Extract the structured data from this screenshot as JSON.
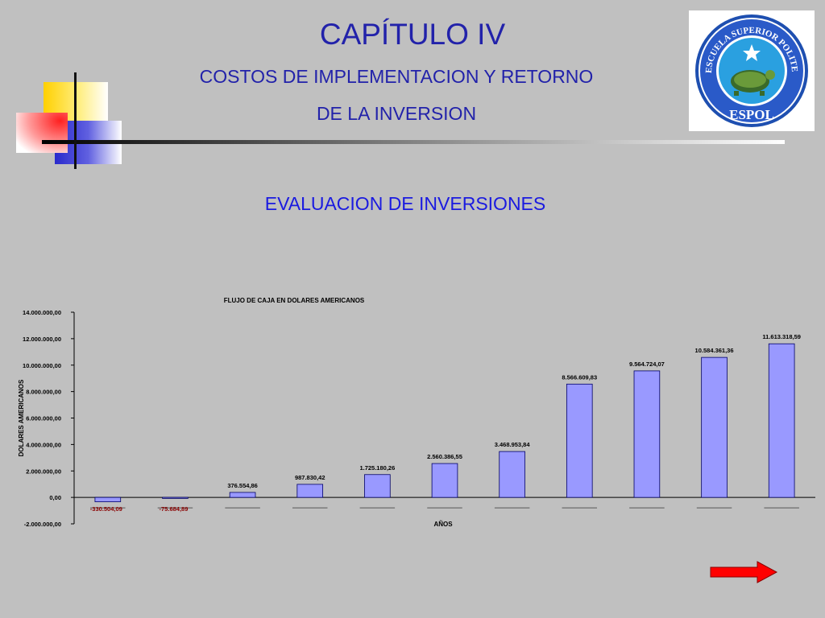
{
  "slide": {
    "title": "CAPÍTULO IV",
    "subtitle_line1": "COSTOS DE IMPLEMENTACION Y RETORNO",
    "subtitle_line2": "DE LA INVERSION",
    "section_title": "EVALUACION DE INVERSIONES"
  },
  "logo": {
    "text_top": "ESCUELA SUPERIOR POLITECNICA DEL LITORAL",
    "text_bottom": "ESPOL"
  },
  "colors": {
    "background": "#c0c0c0",
    "title": "#2222aa",
    "section": "#1a1ae0",
    "bar": "#9999ff",
    "negative_label": "#8b0000",
    "arrow": "#ff0000"
  },
  "nav": {
    "next_icon": "right-arrow-icon"
  },
  "chart_data": {
    "type": "bar",
    "title": "FLUJO DE CAJA EN DOLARES AMERICANOS",
    "xlabel": "AÑOS",
    "ylabel": "DOLARES AMERICANOS",
    "ylim": [
      -2000000,
      14000000
    ],
    "grid": false,
    "yticks": [
      14000000,
      12000000,
      10000000,
      8000000,
      6000000,
      4000000,
      2000000,
      0,
      -2000000
    ],
    "ytick_labels": [
      "14.000.000,00",
      "12.000.000,00",
      "10.000.000,00",
      "8.000.000,00",
      "6.000.000,00",
      "4.000.000,00",
      "2.000.000,00",
      "0,00",
      "-2.000.000,00"
    ],
    "values": [
      -330504.09,
      -75684.89,
      376554.86,
      987830.42,
      1725180.26,
      2560386.55,
      3468953.84,
      8566609.83,
      9564724.07,
      10584361.36,
      11613318.59
    ],
    "value_labels": [
      "-330.504,09",
      "-75.684,89",
      "376.554,86",
      "987.830,42",
      "1.725.180,26",
      "2.560.386,55",
      "3.468.953,84",
      "8.566.609,83",
      "9.564.724,07",
      "10.584.361,36",
      "11.613.318,59"
    ]
  }
}
